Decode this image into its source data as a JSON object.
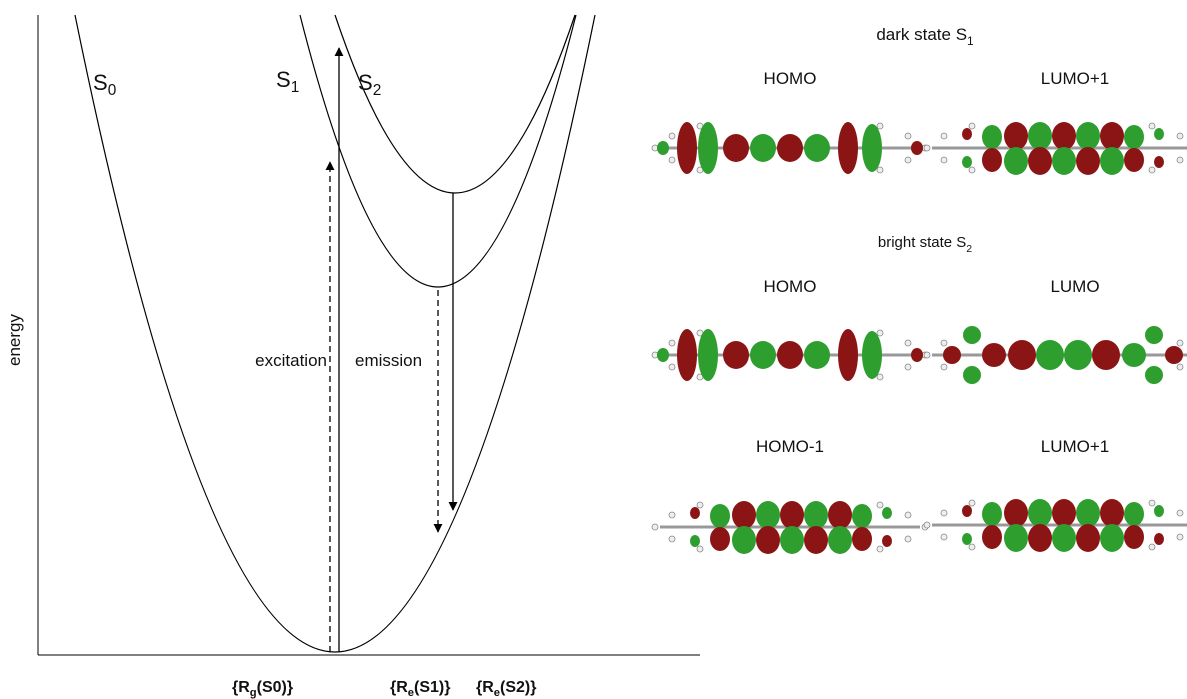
{
  "axis_label": "energy",
  "curves": [
    {
      "main": "S",
      "sub": "0"
    },
    {
      "main": "S",
      "sub": "1"
    },
    {
      "main": "S",
      "sub": "2"
    }
  ],
  "arrow_labels": {
    "excitation": "excitation",
    "emission": "emission"
  },
  "x_labels": [
    {
      "main": "{R",
      "sub": "g",
      "rest": "(S0)}"
    },
    {
      "main": "{R",
      "sub": "e",
      "rest": "(S1)}"
    },
    {
      "main": "{R",
      "sub": "e",
      "rest": "(S2)}"
    }
  ],
  "panels": [
    {
      "title": {
        "main": "dark state S",
        "sub": "1"
      },
      "orbitals": [
        "HOMO",
        "LUMO+1"
      ]
    },
    {
      "title": {
        "main": "bright state S",
        "sub": "2"
      },
      "orbitals": [
        "HOMO",
        "LUMO",
        "HOMO-1",
        "LUMO+1"
      ]
    }
  ]
}
